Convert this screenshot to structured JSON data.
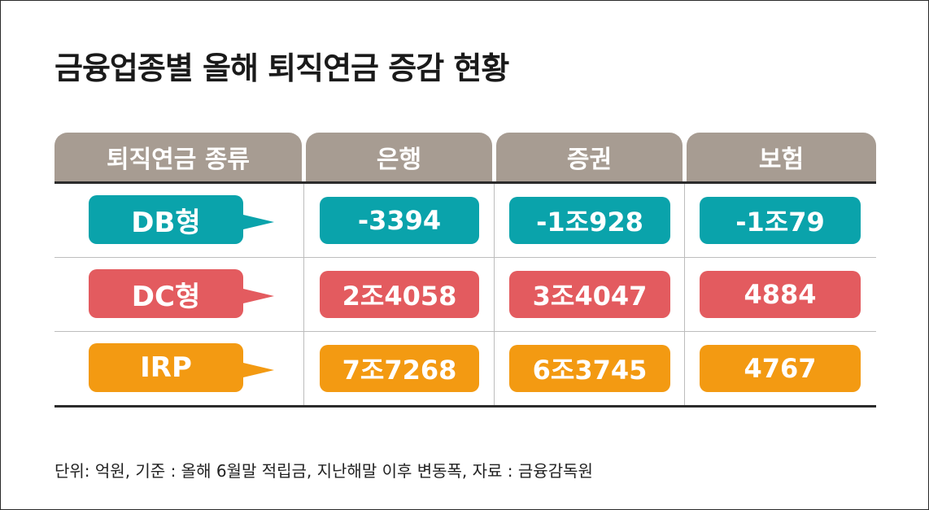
{
  "title": "금융업종별 올해 퇴직연금 증감 현황",
  "footnote": "단위: 억원, 기준 : 올해 6월말 적립금, 지난해말 이후 변동폭, 자료 : 금융감독원",
  "colors": {
    "header": "#a79c92",
    "DB": "#0aa3ab",
    "DC": "#e35b5f",
    "IRP": "#f39a12"
  },
  "chart_data": {
    "type": "table",
    "title": "금융업종별 올해 퇴직연금 증감 현황",
    "columns": [
      "퇴직연금 종류",
      "은행",
      "증권",
      "보험"
    ],
    "rows": [
      {
        "type": "DB형",
        "color": "#0aa3ab",
        "values": [
          "-3394",
          "-1조928",
          "-1조79"
        ]
      },
      {
        "type": "DC형",
        "color": "#e35b5f",
        "values": [
          "2조4058",
          "3조4047",
          "4884"
        ]
      },
      {
        "type": "IRP",
        "color": "#f39a12",
        "values": [
          "7조7268",
          "6조3745",
          "4767"
        ]
      }
    ]
  }
}
